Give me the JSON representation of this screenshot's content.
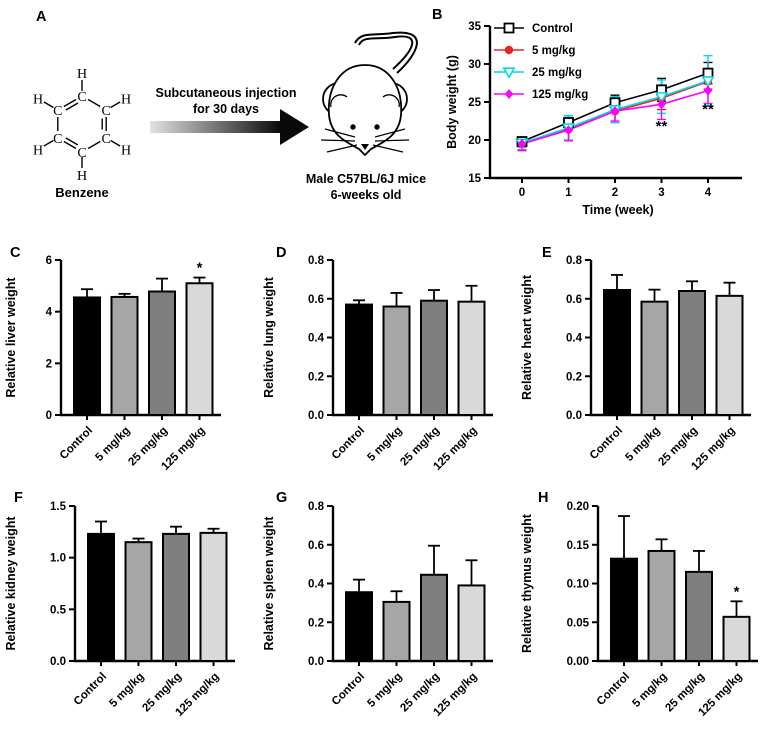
{
  "figure": {
    "background": "#ffffff",
    "panel_labels": {
      "A": "A",
      "B": "B",
      "C": "C",
      "D": "D",
      "E": "E",
      "F": "F",
      "G": "G",
      "H": "H"
    },
    "groups": [
      "Control",
      "5 mg/kg",
      "25 mg/kg",
      "125 mg/kg"
    ],
    "group_bar_colors": [
      "#000000",
      "#a6a6a6",
      "#7f7f7f",
      "#d9d9d9"
    ],
    "panels": {
      "A": {
        "molecule_name": "Benzene",
        "atoms": {
          "carbon": "C",
          "hydrogen": "H"
        },
        "arrow_text_line1": "Subcutaneous injection",
        "arrow_text_line2": "for 30 days",
        "caption_line1": "Male C57BL/6J mice",
        "caption_line2": "6-weeks old"
      }
    }
  },
  "chart_data": [
    {
      "panel": "B",
      "type": "line",
      "title": "",
      "xlabel": "Time (week)",
      "ylabel": "Body weight (g)",
      "x": [
        0,
        1,
        2,
        3,
        4
      ],
      "xtick_labels": [
        "0",
        "1",
        "2",
        "3",
        "4"
      ],
      "ylim": [
        15,
        35
      ],
      "yticks": [
        15,
        20,
        25,
        30,
        35
      ],
      "ytick_labels": [
        "15",
        "20",
        "25",
        "30",
        "35"
      ],
      "grid": "off",
      "legend_position": "inside-top-left",
      "series": [
        {
          "name": "Control",
          "color": "#000000",
          "marker": "open-square",
          "values": [
            19.8,
            22.3,
            24.9,
            26.6,
            28.8
          ],
          "errors": [
            0.5,
            0.9,
            1.0,
            1.5,
            1.4
          ]
        },
        {
          "name": "5 mg/kg",
          "color": "#e8232a",
          "marker": "filled-circle",
          "values": [
            19.5,
            21.4,
            23.8,
            25.5,
            27.7
          ],
          "errors": [
            0.8,
            1.5,
            1.5,
            1.5,
            1.0
          ]
        },
        {
          "name": "25 mg/kg",
          "color": "#00d9e5",
          "marker": "open-triangle-down",
          "values": [
            19.6,
            21.6,
            24.0,
            25.7,
            27.8
          ],
          "errors": [
            0.6,
            1.6,
            1.7,
            2.2,
            3.3
          ]
        },
        {
          "name": "125 mg/kg",
          "color": "#ff00ff",
          "marker": "filled-diamond",
          "values": [
            19.5,
            21.3,
            23.8,
            24.7,
            26.5
          ],
          "errors": [
            0.9,
            1.4,
            1.3,
            2.0,
            1.7
          ]
        }
      ],
      "annotations": [
        {
          "text": "**",
          "x": 3,
          "y": 21.2
        },
        {
          "text": "**",
          "x": 4,
          "y": 23.4
        }
      ]
    },
    {
      "panel": "C",
      "type": "bar",
      "ylabel": "Relative liver weight",
      "categories": [
        "Control",
        "5 mg/kg",
        "25 mg/kg",
        "125 mg/kg"
      ],
      "values": [
        4.55,
        4.57,
        4.78,
        5.1
      ],
      "errors": [
        0.32,
        0.12,
        0.5,
        0.22
      ],
      "ylim": [
        0,
        6
      ],
      "yticks": [
        0,
        2,
        4,
        6
      ],
      "ytick_labels": [
        "0",
        "2",
        "4",
        "6"
      ],
      "bar_colors": [
        "#000000",
        "#a6a6a6",
        "#7f7f7f",
        "#d9d9d9"
      ],
      "significance": [
        "",
        "",
        "",
        "*"
      ]
    },
    {
      "panel": "D",
      "type": "bar",
      "ylabel": "Relative lung weight",
      "categories": [
        "Control",
        "5 mg/kg",
        "25 mg/kg",
        "125 mg/kg"
      ],
      "values": [
        0.57,
        0.56,
        0.59,
        0.585
      ],
      "errors": [
        0.022,
        0.07,
        0.055,
        0.082
      ],
      "ylim": [
        0,
        0.8
      ],
      "yticks": [
        0,
        0.2,
        0.4,
        0.6,
        0.8
      ],
      "ytick_labels": [
        "0.0",
        "0.2",
        "0.4",
        "0.6",
        "0.8"
      ],
      "bar_colors": [
        "#000000",
        "#a6a6a6",
        "#7f7f7f",
        "#d9d9d9"
      ],
      "significance": [
        "",
        "",
        "",
        ""
      ]
    },
    {
      "panel": "E",
      "type": "bar",
      "ylabel": "Relative heart weight",
      "categories": [
        "Control",
        "5 mg/kg",
        "25 mg/kg",
        "125 mg/kg"
      ],
      "values": [
        0.645,
        0.585,
        0.64,
        0.615
      ],
      "errors": [
        0.078,
        0.062,
        0.05,
        0.068
      ],
      "ylim": [
        0,
        0.8
      ],
      "yticks": [
        0,
        0.2,
        0.4,
        0.6,
        0.8
      ],
      "ytick_labels": [
        "0.0",
        "0.2",
        "0.4",
        "0.6",
        "0.8"
      ],
      "bar_colors": [
        "#000000",
        "#a6a6a6",
        "#7f7f7f",
        "#d9d9d9"
      ],
      "significance": [
        "",
        "",
        "",
        ""
      ]
    },
    {
      "panel": "F",
      "type": "bar",
      "ylabel": "Relative kidney weight",
      "categories": [
        "Control",
        "5 mg/kg",
        "25 mg/kg",
        "125 mg/kg"
      ],
      "values": [
        1.23,
        1.15,
        1.23,
        1.24
      ],
      "errors": [
        0.12,
        0.035,
        0.07,
        0.04
      ],
      "ylim": [
        0,
        1.5
      ],
      "yticks": [
        0,
        0.5,
        1.0,
        1.5
      ],
      "ytick_labels": [
        "0.0",
        "0.5",
        "1.0",
        "1.5"
      ],
      "bar_colors": [
        "#000000",
        "#a6a6a6",
        "#7f7f7f",
        "#d9d9d9"
      ],
      "significance": [
        "",
        "",
        "",
        ""
      ]
    },
    {
      "panel": "G",
      "type": "bar",
      "ylabel": "Relative spleen weight",
      "categories": [
        "Control",
        "5 mg/kg",
        "25 mg/kg",
        "125 mg/kg"
      ],
      "values": [
        0.355,
        0.305,
        0.445,
        0.39
      ],
      "errors": [
        0.065,
        0.055,
        0.15,
        0.13
      ],
      "ylim": [
        0,
        0.8
      ],
      "yticks": [
        0,
        0.2,
        0.4,
        0.6,
        0.8
      ],
      "ytick_labels": [
        "0.0",
        "0.2",
        "0.4",
        "0.6",
        "0.8"
      ],
      "bar_colors": [
        "#000000",
        "#a6a6a6",
        "#7f7f7f",
        "#d9d9d9"
      ],
      "significance": [
        "",
        "",
        "",
        ""
      ]
    },
    {
      "panel": "H",
      "type": "bar",
      "ylabel": "Relative thymus weight",
      "categories": [
        "Control",
        "5 mg/kg",
        "25 mg/kg",
        "125 mg/kg"
      ],
      "values": [
        0.132,
        0.142,
        0.115,
        0.057
      ],
      "errors": [
        0.055,
        0.015,
        0.027,
        0.02
      ],
      "ylim": [
        0,
        0.2
      ],
      "yticks": [
        0,
        0.05,
        0.1,
        0.15,
        0.2
      ],
      "ytick_labels": [
        "0.00",
        "0.05",
        "0.10",
        "0.15",
        "0.20"
      ],
      "bar_colors": [
        "#000000",
        "#a6a6a6",
        "#7f7f7f",
        "#d9d9d9"
      ],
      "significance": [
        "",
        "",
        "",
        "*"
      ]
    }
  ]
}
